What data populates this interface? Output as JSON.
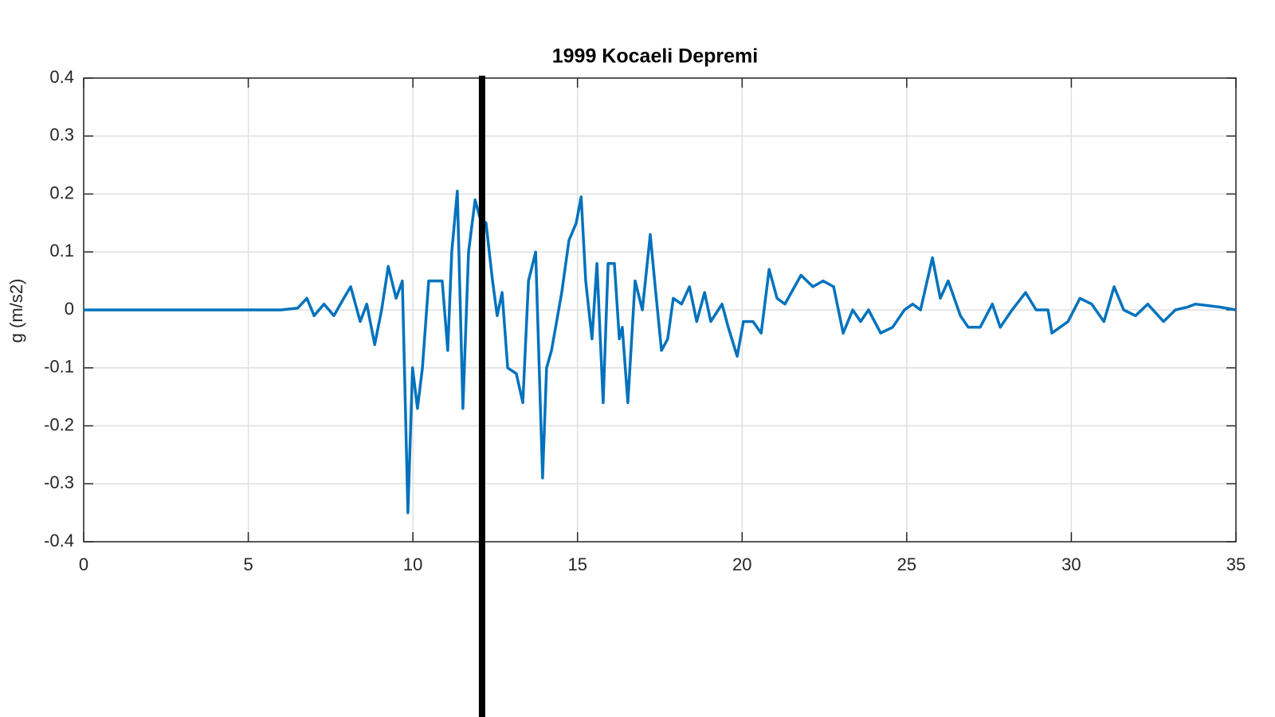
{
  "chart_data": {
    "type": "line",
    "title": "1999 Kocaeli Depremi",
    "y_label": "g (m/s2)",
    "xlim": [
      0,
      35
    ],
    "ylim": [
      -0.4,
      0.4
    ],
    "xticks": [
      0,
      5,
      10,
      15,
      20,
      25,
      30,
      35
    ],
    "yticks": [
      -0.4,
      -0.3,
      -0.2,
      -0.1,
      0,
      0.1,
      0.2,
      0.3,
      0.4
    ],
    "grid": true,
    "cursor_x": 12.1,
    "series": [
      {
        "color": "#0072bd",
        "x": [
          0,
          6.0,
          6.5,
          6.78,
          7.0,
          7.3,
          7.6,
          7.9,
          8.11,
          8.4,
          8.6,
          8.84,
          9.05,
          9.25,
          9.49,
          9.68,
          9.85,
          9.99,
          10.14,
          10.29,
          10.48,
          10.72,
          10.89,
          11.06,
          11.18,
          11.35,
          11.52,
          11.69,
          11.89,
          12.03,
          12.22,
          12.42,
          12.56,
          12.71,
          12.88,
          13.14,
          13.34,
          13.51,
          13.73,
          13.94,
          14.06,
          14.21,
          14.52,
          14.74,
          14.96,
          15.11,
          15.25,
          15.44,
          15.59,
          15.78,
          15.93,
          16.12,
          16.27,
          16.36,
          16.53,
          16.75,
          16.97,
          17.21,
          17.36,
          17.55,
          17.74,
          17.91,
          18.16,
          18.4,
          18.62,
          18.86,
          19.05,
          19.39,
          19.58,
          19.85,
          20.04,
          20.33,
          20.58,
          20.82,
          21.06,
          21.3,
          21.79,
          22.15,
          22.46,
          22.78,
          23.07,
          23.36,
          23.6,
          23.84,
          24.21,
          24.57,
          24.93,
          25.18,
          25.42,
          25.78,
          26.02,
          26.26,
          26.63,
          26.87,
          27.23,
          27.6,
          27.84,
          28.2,
          28.61,
          28.93,
          29.29,
          29.41,
          29.9,
          30.26,
          30.62,
          30.99,
          31.3,
          31.59,
          31.95,
          32.32,
          32.8,
          33.16,
          33.53,
          33.77,
          34.5,
          35
        ],
        "values": [
          0,
          0,
          0.003,
          0.02,
          -0.01,
          0.01,
          -0.01,
          0.02,
          0.04,
          -0.02,
          0.01,
          -0.06,
          0.0,
          0.075,
          0.02,
          0.05,
          -0.35,
          -0.1,
          -0.17,
          -0.1,
          0.05,
          0.05,
          0.05,
          -0.07,
          0.1,
          0.205,
          -0.17,
          0.1,
          0.19,
          0.16,
          0.15,
          0.05,
          -0.01,
          0.03,
          -0.1,
          -0.11,
          -0.16,
          0.05,
          0.1,
          -0.29,
          -0.1,
          -0.07,
          0.03,
          0.12,
          0.15,
          0.195,
          0.05,
          -0.05,
          0.08,
          -0.16,
          0.08,
          0.08,
          -0.05,
          -0.03,
          -0.16,
          0.05,
          0.0,
          0.13,
          0.04,
          -0.07,
          -0.05,
          0.02,
          0.01,
          0.04,
          -0.02,
          0.03,
          -0.02,
          0.01,
          -0.03,
          -0.08,
          -0.02,
          -0.02,
          -0.04,
          0.07,
          0.02,
          0.01,
          0.06,
          0.04,
          0.05,
          0.04,
          -0.04,
          0.0,
          -0.02,
          0.0,
          -0.04,
          -0.03,
          0.0,
          0.01,
          0.0,
          0.09,
          0.02,
          0.05,
          -0.01,
          -0.03,
          -0.03,
          0.01,
          -0.03,
          0.0,
          0.03,
          0.0,
          0.0,
          -0.04,
          -0.02,
          0.02,
          0.01,
          -0.02,
          0.04,
          0.0,
          -0.01,
          0.01,
          -0.02,
          0.0,
          0.005,
          0.01,
          0.005,
          0.0
        ]
      }
    ]
  }
}
